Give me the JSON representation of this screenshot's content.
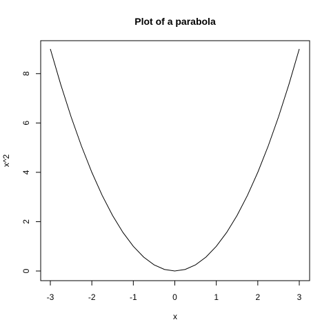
{
  "chart_data": {
    "type": "line",
    "title": "Plot of a parabola",
    "xlabel": "x",
    "ylabel": "x^2",
    "xlim": [
      -3,
      3
    ],
    "ylim": [
      0,
      9
    ],
    "x_ticks": [
      -3,
      -2,
      -1,
      0,
      1,
      2,
      3
    ],
    "x_tick_labels": [
      "-3",
      "-2",
      "-1",
      "0",
      "1",
      "2",
      "3"
    ],
    "y_ticks": [
      0,
      2,
      4,
      6,
      8
    ],
    "y_tick_labels": [
      "0",
      "2",
      "4",
      "6",
      "8"
    ],
    "grid": false,
    "series": [
      {
        "function": "x^2",
        "color": "#000000",
        "x": [
          -3,
          -2.75,
          -2.5,
          -2.25,
          -2,
          -1.75,
          -1.5,
          -1.25,
          -1,
          -0.75,
          -0.5,
          -0.25,
          0,
          0.25,
          0.5,
          0.75,
          1,
          1.25,
          1.5,
          1.75,
          2,
          2.25,
          2.5,
          2.75,
          3
        ],
        "y": [
          9,
          7.5625,
          6.25,
          5.0625,
          4,
          3.0625,
          2.25,
          1.5625,
          1,
          0.5625,
          0.25,
          0.0625,
          0,
          0.0625,
          0.25,
          0.5625,
          1,
          1.5625,
          2.25,
          3.0625,
          4,
          5.0625,
          6.25,
          7.5625,
          9
        ]
      }
    ]
  }
}
